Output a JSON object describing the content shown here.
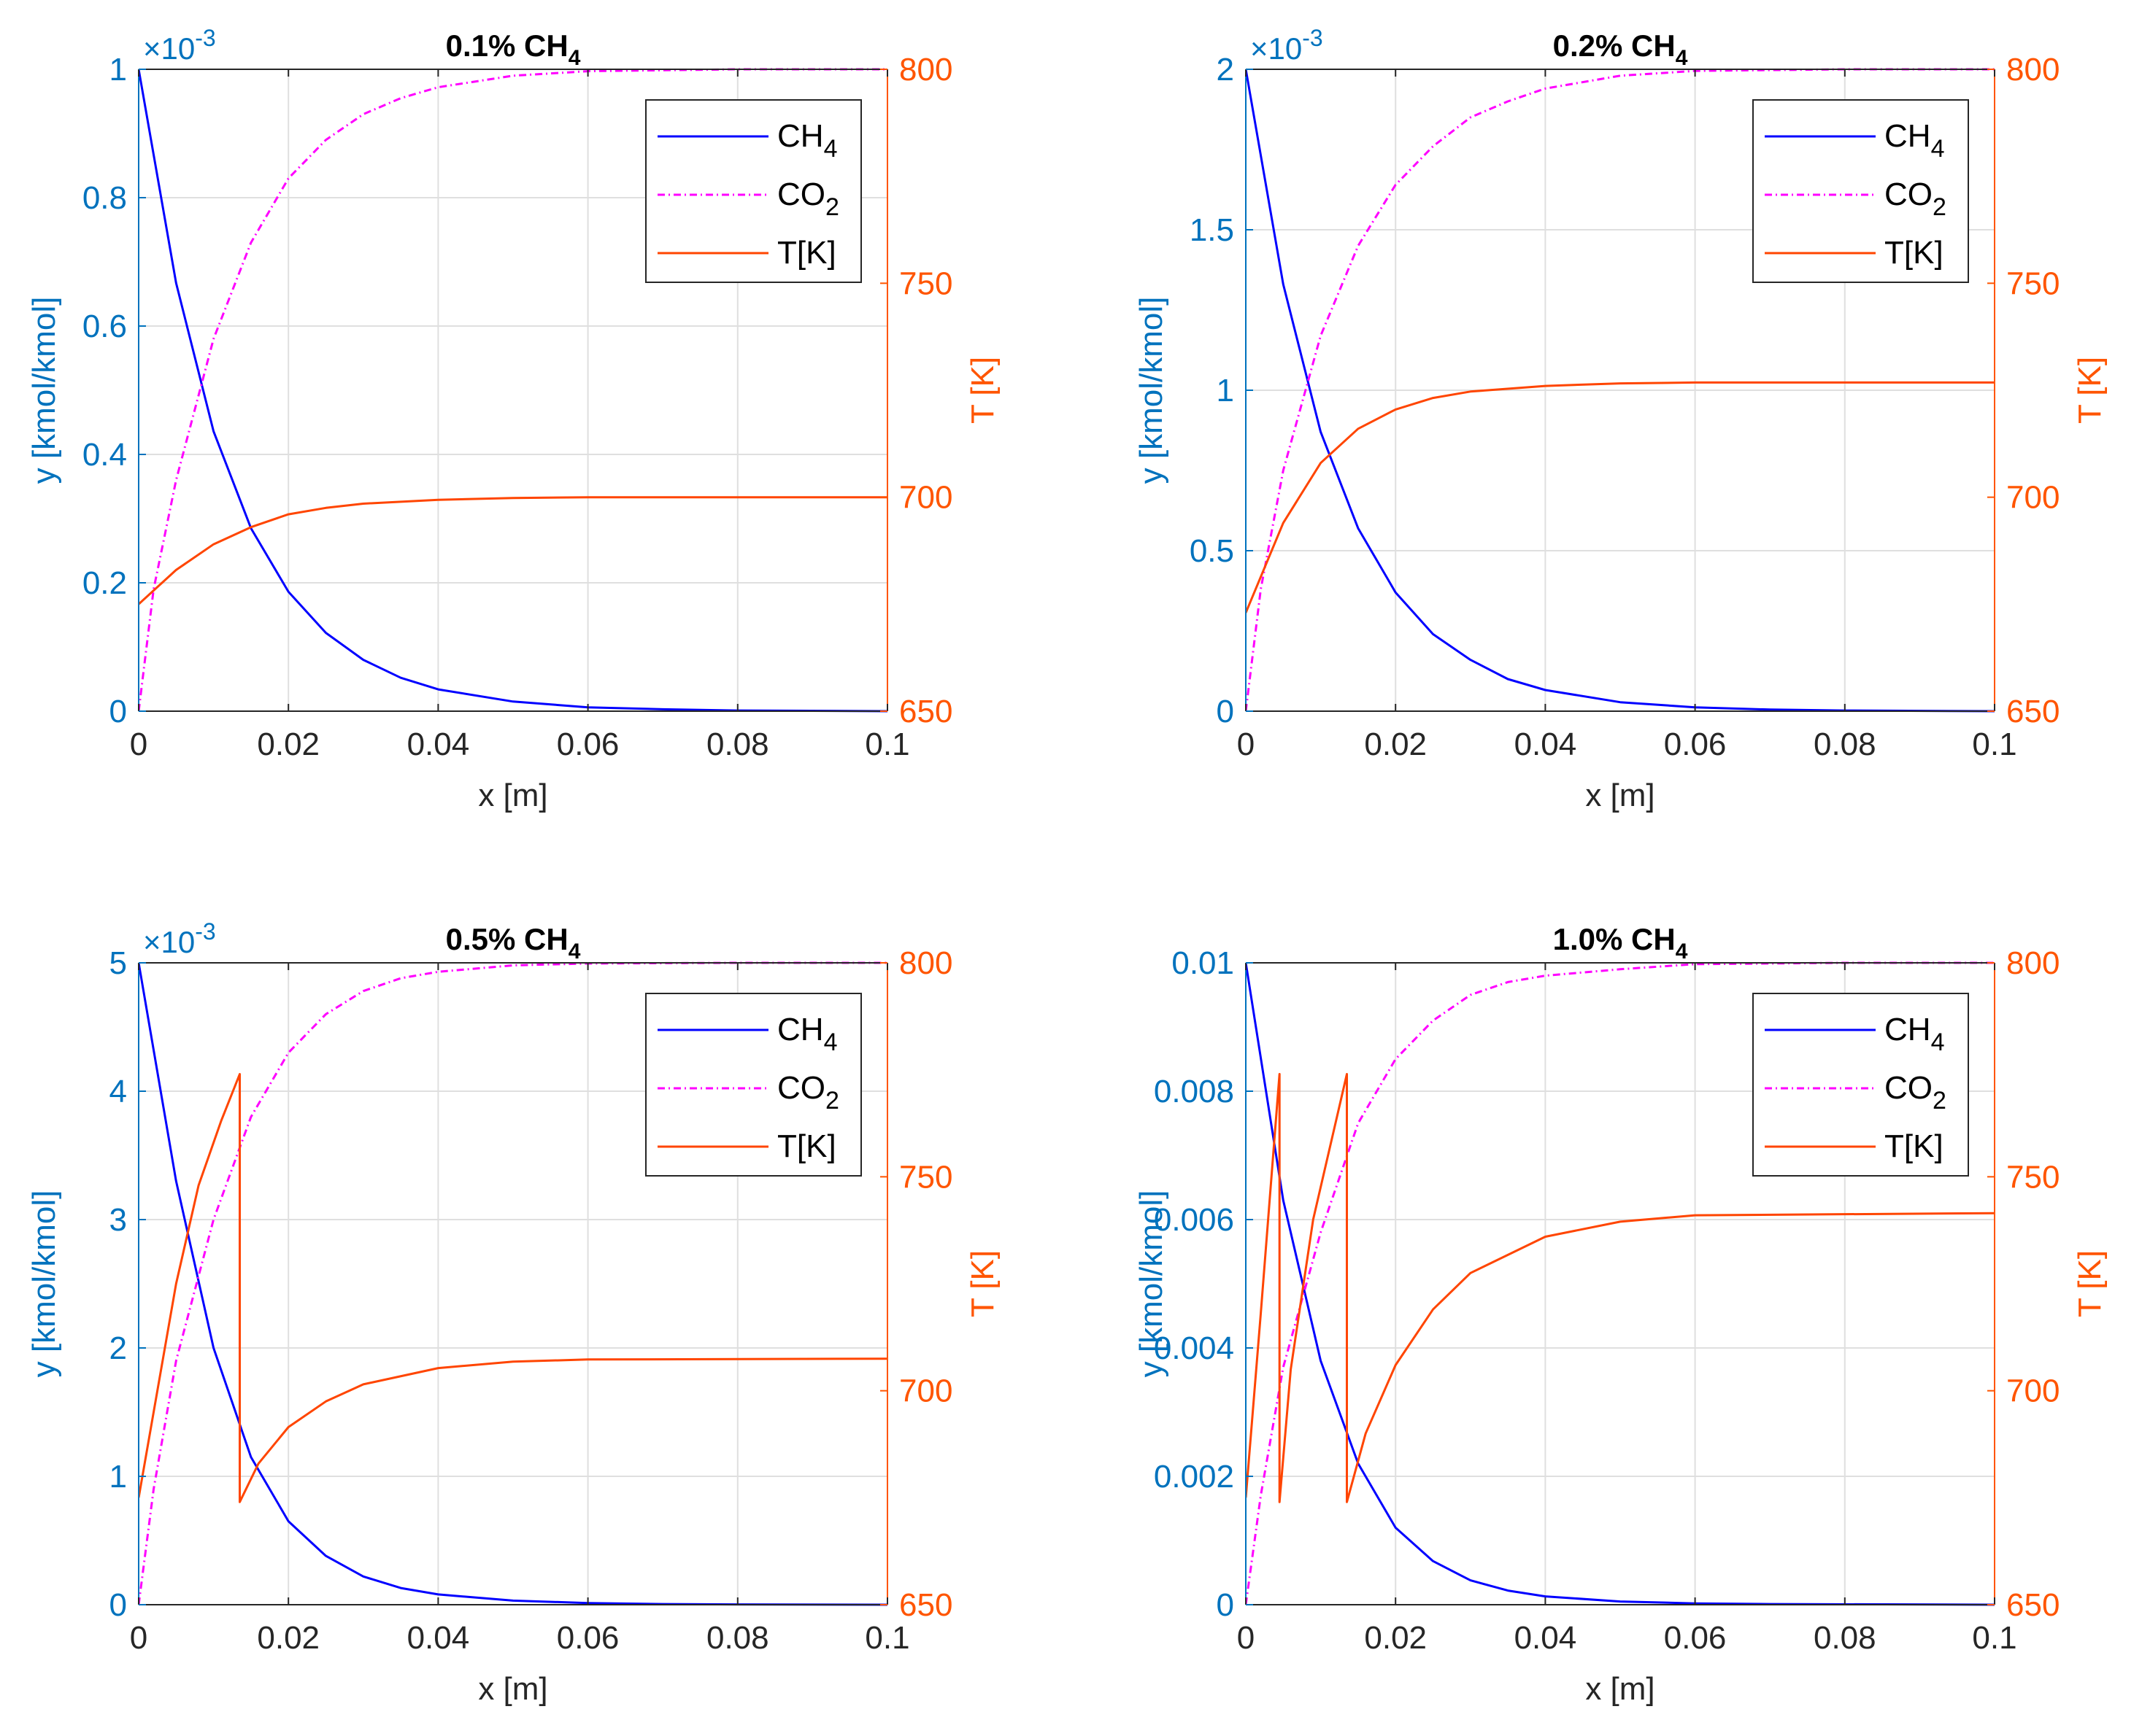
{
  "chart_data": [
    {
      "type": "line",
      "title": "0.1% CH",
      "title_sub": "4",
      "xlabel": "x [m]",
      "ylabel_left": "y [kmol/kmol]",
      "ylabel_right": "T [K]",
      "multiplier": "×10",
      "multiplier_exp": "-3",
      "xlim": [
        0,
        0.1
      ],
      "ylim_left": [
        0,
        1
      ],
      "ylim_right": [
        650,
        800
      ],
      "xticks": [
        0,
        0.02,
        0.04,
        0.06,
        0.08,
        0.1
      ],
      "xtick_labels": [
        "0",
        "0.02",
        "0.04",
        "0.06",
        "0.08",
        "0.1"
      ],
      "yticks_left": [
        0,
        0.2,
        0.4,
        0.6,
        0.8,
        1
      ],
      "ytick_labels_left": [
        "0",
        "0.2",
        "0.4",
        "0.6",
        "0.8",
        "1"
      ],
      "yticks_right": [
        650,
        700,
        750,
        800
      ],
      "ytick_labels_right": [
        "650",
        "700",
        "750",
        "800"
      ],
      "legend": [
        {
          "name": "CH",
          "sub": "4",
          "color": "#0000ff",
          "dash": "solid"
        },
        {
          "name": "CO",
          "sub": "2",
          "color": "#ff00ff",
          "dash": "dashdot"
        },
        {
          "name": "T[K]",
          "sub": "",
          "color": "#ff4500",
          "dash": "solid"
        }
      ],
      "series": [
        {
          "name": "CH4",
          "axis": "left",
          "color": "#0000ff",
          "dash": "solid",
          "points": [
            [
              0,
              1.0
            ],
            [
              0.005,
              0.667
            ],
            [
              0.01,
              0.436
            ],
            [
              0.015,
              0.285
            ],
            [
              0.02,
              0.186
            ],
            [
              0.025,
              0.122
            ],
            [
              0.03,
              0.08
            ],
            [
              0.035,
              0.052
            ],
            [
              0.04,
              0.034
            ],
            [
              0.05,
              0.015
            ],
            [
              0.06,
              0.006
            ],
            [
              0.07,
              0.003
            ],
            [
              0.08,
              0.001
            ],
            [
              0.1,
              0.0
            ]
          ]
        },
        {
          "name": "CO2",
          "axis": "left",
          "color": "#ff00ff",
          "dash": "dashdot",
          "points": [
            [
              0,
              0
            ],
            [
              0.002,
              0.19
            ],
            [
              0.005,
              0.36
            ],
            [
              0.01,
              0.58
            ],
            [
              0.015,
              0.73
            ],
            [
              0.02,
              0.83
            ],
            [
              0.025,
              0.89
            ],
            [
              0.03,
              0.93
            ],
            [
              0.035,
              0.955
            ],
            [
              0.04,
              0.972
            ],
            [
              0.05,
              0.99
            ],
            [
              0.06,
              0.997
            ],
            [
              0.08,
              1.0
            ],
            [
              0.1,
              1.0
            ]
          ]
        },
        {
          "name": "T",
          "axis": "right",
          "color": "#ff4500",
          "dash": "solid",
          "points": [
            [
              0,
              675
            ],
            [
              0.005,
              683
            ],
            [
              0.01,
              689
            ],
            [
              0.015,
              693
            ],
            [
              0.02,
              696
            ],
            [
              0.025,
              697.5
            ],
            [
              0.03,
              698.5
            ],
            [
              0.04,
              699.4
            ],
            [
              0.05,
              699.8
            ],
            [
              0.06,
              700
            ],
            [
              0.1,
              700
            ]
          ]
        }
      ]
    },
    {
      "type": "line",
      "title": "0.2% CH",
      "title_sub": "4",
      "xlabel": "x [m]",
      "ylabel_left": "y [kmol/kmol]",
      "ylabel_right": "T [K]",
      "multiplier": "×10",
      "multiplier_exp": "-3",
      "xlim": [
        0,
        0.1
      ],
      "ylim_left": [
        0,
        2
      ],
      "ylim_right": [
        650,
        800
      ],
      "xticks": [
        0,
        0.02,
        0.04,
        0.06,
        0.08,
        0.1
      ],
      "xtick_labels": [
        "0",
        "0.02",
        "0.04",
        "0.06",
        "0.08",
        "0.1"
      ],
      "yticks_left": [
        0,
        0.5,
        1,
        1.5,
        2
      ],
      "ytick_labels_left": [
        "0",
        "0.5",
        "1",
        "1.5",
        "2"
      ],
      "yticks_right": [
        650,
        700,
        750,
        800
      ],
      "ytick_labels_right": [
        "650",
        "700",
        "750",
        "800"
      ],
      "legend": [
        {
          "name": "CH",
          "sub": "4",
          "color": "#0000ff",
          "dash": "solid"
        },
        {
          "name": "CO",
          "sub": "2",
          "color": "#ff00ff",
          "dash": "dashdot"
        },
        {
          "name": "T[K]",
          "sub": "",
          "color": "#ff4500",
          "dash": "solid"
        }
      ],
      "series": [
        {
          "name": "CH4",
          "axis": "left",
          "color": "#0000ff",
          "dash": "solid",
          "points": [
            [
              0,
              2.0
            ],
            [
              0.005,
              1.33
            ],
            [
              0.01,
              0.87
            ],
            [
              0.015,
              0.57
            ],
            [
              0.02,
              0.37
            ],
            [
              0.025,
              0.24
            ],
            [
              0.03,
              0.16
            ],
            [
              0.035,
              0.1
            ],
            [
              0.04,
              0.066
            ],
            [
              0.05,
              0.028
            ],
            [
              0.06,
              0.012
            ],
            [
              0.07,
              0.005
            ],
            [
              0.08,
              0.002
            ],
            [
              0.1,
              0.0
            ]
          ]
        },
        {
          "name": "CO2",
          "axis": "left",
          "color": "#ff00ff",
          "dash": "dashdot",
          "points": [
            [
              0,
              0
            ],
            [
              0.002,
              0.38
            ],
            [
              0.005,
              0.75
            ],
            [
              0.01,
              1.17
            ],
            [
              0.015,
              1.45
            ],
            [
              0.02,
              1.64
            ],
            [
              0.025,
              1.76
            ],
            [
              0.03,
              1.85
            ],
            [
              0.035,
              1.9
            ],
            [
              0.04,
              1.94
            ],
            [
              0.05,
              1.98
            ],
            [
              0.06,
              1.995
            ],
            [
              0.08,
              2.0
            ],
            [
              0.1,
              2.0
            ]
          ]
        },
        {
          "name": "T",
          "axis": "right",
          "color": "#ff4500",
          "dash": "solid",
          "points": [
            [
              0,
              673
            ],
            [
              0.005,
              694
            ],
            [
              0.01,
              708
            ],
            [
              0.015,
              716
            ],
            [
              0.02,
              720.5
            ],
            [
              0.025,
              723.2
            ],
            [
              0.03,
              724.7
            ],
            [
              0.04,
              726
            ],
            [
              0.05,
              726.6
            ],
            [
              0.06,
              726.8
            ],
            [
              0.1,
              726.8
            ]
          ]
        }
      ]
    },
    {
      "type": "line",
      "title": "0.5% CH",
      "title_sub": "4",
      "xlabel": "x [m]",
      "ylabel_left": "y [kmol/kmol]",
      "ylabel_right": "T [K]",
      "multiplier": "×10",
      "multiplier_exp": "-3",
      "xlim": [
        0,
        0.1
      ],
      "ylim_left": [
        0,
        5
      ],
      "ylim_right": [
        650,
        800
      ],
      "xticks": [
        0,
        0.02,
        0.04,
        0.06,
        0.08,
        0.1
      ],
      "xtick_labels": [
        "0",
        "0.02",
        "0.04",
        "0.06",
        "0.08",
        "0.1"
      ],
      "yticks_left": [
        0,
        1,
        2,
        3,
        4,
        5
      ],
      "ytick_labels_left": [
        "0",
        "1",
        "2",
        "3",
        "4",
        "5"
      ],
      "yticks_right": [
        650,
        700,
        750,
        800
      ],
      "ytick_labels_right": [
        "650",
        "700",
        "750",
        "800"
      ],
      "legend": [
        {
          "name": "CH",
          "sub": "4",
          "color": "#0000ff",
          "dash": "solid"
        },
        {
          "name": "CO",
          "sub": "2",
          "color": "#ff00ff",
          "dash": "dashdot"
        },
        {
          "name": "T[K]",
          "sub": "",
          "color": "#ff4500",
          "dash": "solid"
        }
      ],
      "series": [
        {
          "name": "CH4",
          "axis": "left",
          "color": "#0000ff",
          "dash": "solid",
          "points": [
            [
              0,
              5.0
            ],
            [
              0.005,
              3.3
            ],
            [
              0.01,
              2.0
            ],
            [
              0.015,
              1.15
            ],
            [
              0.02,
              0.65
            ],
            [
              0.025,
              0.38
            ],
            [
              0.03,
              0.22
            ],
            [
              0.035,
              0.13
            ],
            [
              0.04,
              0.08
            ],
            [
              0.05,
              0.032
            ],
            [
              0.06,
              0.013
            ],
            [
              0.07,
              0.005
            ],
            [
              0.08,
              0.002
            ],
            [
              0.1,
              0.0
            ]
          ]
        },
        {
          "name": "CO2",
          "axis": "left",
          "color": "#ff00ff",
          "dash": "dashdot",
          "points": [
            [
              0,
              0
            ],
            [
              0.002,
              0.9
            ],
            [
              0.005,
              1.9
            ],
            [
              0.01,
              3.0
            ],
            [
              0.015,
              3.8
            ],
            [
              0.02,
              4.3
            ],
            [
              0.025,
              4.6
            ],
            [
              0.03,
              4.78
            ],
            [
              0.035,
              4.88
            ],
            [
              0.04,
              4.93
            ],
            [
              0.05,
              4.98
            ],
            [
              0.06,
              4.995
            ],
            [
              0.08,
              5.0
            ],
            [
              0.1,
              5.0
            ]
          ]
        },
        {
          "name": "T",
          "axis": "right",
          "color": "#ff4500",
          "dash": "solid",
          "points": [
            [
              0,
              675
            ],
            [
              0.002,
              695
            ],
            [
              0.005,
              725
            ],
            [
              0.008,
              748
            ],
            [
              0.011,
              763
            ],
            [
              0.0135,
              774
            ],
            [
              0.0135,
              674
            ],
            [
              0.016,
              683
            ],
            [
              0.02,
              691.5
            ],
            [
              0.025,
              697.5
            ],
            [
              0.03,
              701.5
            ],
            [
              0.04,
              705.3
            ],
            [
              0.05,
              706.8
            ],
            [
              0.06,
              707.3
            ],
            [
              0.1,
              707.5
            ]
          ]
        }
      ]
    },
    {
      "type": "line",
      "title": "1.0% CH",
      "title_sub": "4",
      "xlabel": "x [m]",
      "ylabel_left": "y [kmol/kmol]",
      "ylabel_right": "T [K]",
      "multiplier": "",
      "multiplier_exp": "",
      "xlim": [
        0,
        0.1
      ],
      "ylim_left": [
        0,
        0.01
      ],
      "ylim_right": [
        650,
        800
      ],
      "xticks": [
        0,
        0.02,
        0.04,
        0.06,
        0.08,
        0.1
      ],
      "xtick_labels": [
        "0",
        "0.02",
        "0.04",
        "0.06",
        "0.08",
        "0.1"
      ],
      "yticks_left": [
        0,
        0.002,
        0.004,
        0.006,
        0.008,
        0.01
      ],
      "ytick_labels_left": [
        "0",
        "0.002",
        "0.004",
        "0.006",
        "0.008",
        "0.01"
      ],
      "yticks_right": [
        650,
        700,
        750,
        800
      ],
      "ytick_labels_right": [
        "650",
        "700",
        "750",
        "800"
      ],
      "legend": [
        {
          "name": "CH",
          "sub": "4",
          "color": "#0000ff",
          "dash": "solid"
        },
        {
          "name": "CO",
          "sub": "2",
          "color": "#ff00ff",
          "dash": "dashdot"
        },
        {
          "name": "T[K]",
          "sub": "",
          "color": "#ff4500",
          "dash": "solid"
        }
      ],
      "series": [
        {
          "name": "CH4",
          "axis": "left",
          "color": "#0000ff",
          "dash": "solid",
          "points": [
            [
              0,
              0.01
            ],
            [
              0.005,
              0.0063
            ],
            [
              0.01,
              0.0038
            ],
            [
              0.015,
              0.0022
            ],
            [
              0.02,
              0.0012
            ],
            [
              0.025,
              0.00068
            ],
            [
              0.03,
              0.00038
            ],
            [
              0.035,
              0.00022
            ],
            [
              0.04,
              0.00013
            ],
            [
              0.05,
              5e-05
            ],
            [
              0.06,
              2e-05
            ],
            [
              0.07,
              1e-05
            ],
            [
              0.1,
              0.0
            ]
          ]
        },
        {
          "name": "CO2",
          "axis": "left",
          "color": "#ff00ff",
          "dash": "dashdot",
          "points": [
            [
              0,
              0
            ],
            [
              0.002,
              0.0017
            ],
            [
              0.005,
              0.0037
            ],
            [
              0.01,
              0.0058
            ],
            [
              0.015,
              0.0075
            ],
            [
              0.02,
              0.0085
            ],
            [
              0.025,
              0.0091
            ],
            [
              0.03,
              0.0095
            ],
            [
              0.035,
              0.0097
            ],
            [
              0.04,
              0.0098
            ],
            [
              0.05,
              0.0099
            ],
            [
              0.06,
              0.00998
            ],
            [
              0.08,
              0.01
            ],
            [
              0.1,
              0.01
            ]
          ]
        },
        {
          "name": "T",
          "axis": "right",
          "color": "#ff4500",
          "dash": "solid",
          "points": [
            [
              0,
              675
            ],
            [
              0.002,
              718
            ],
            [
              0.0045,
              774
            ],
            [
              0.0045,
              674
            ],
            [
              0.006,
              705
            ],
            [
              0.009,
              740
            ],
            [
              0.0135,
              774
            ],
            [
              0.0135,
              674
            ],
            [
              0.016,
              690
            ],
            [
              0.02,
              706
            ],
            [
              0.025,
              719
            ],
            [
              0.03,
              727.5
            ],
            [
              0.04,
              736
            ],
            [
              0.05,
              739.5
            ],
            [
              0.06,
              741
            ],
            [
              0.1,
              741.5
            ]
          ]
        }
      ]
    }
  ]
}
